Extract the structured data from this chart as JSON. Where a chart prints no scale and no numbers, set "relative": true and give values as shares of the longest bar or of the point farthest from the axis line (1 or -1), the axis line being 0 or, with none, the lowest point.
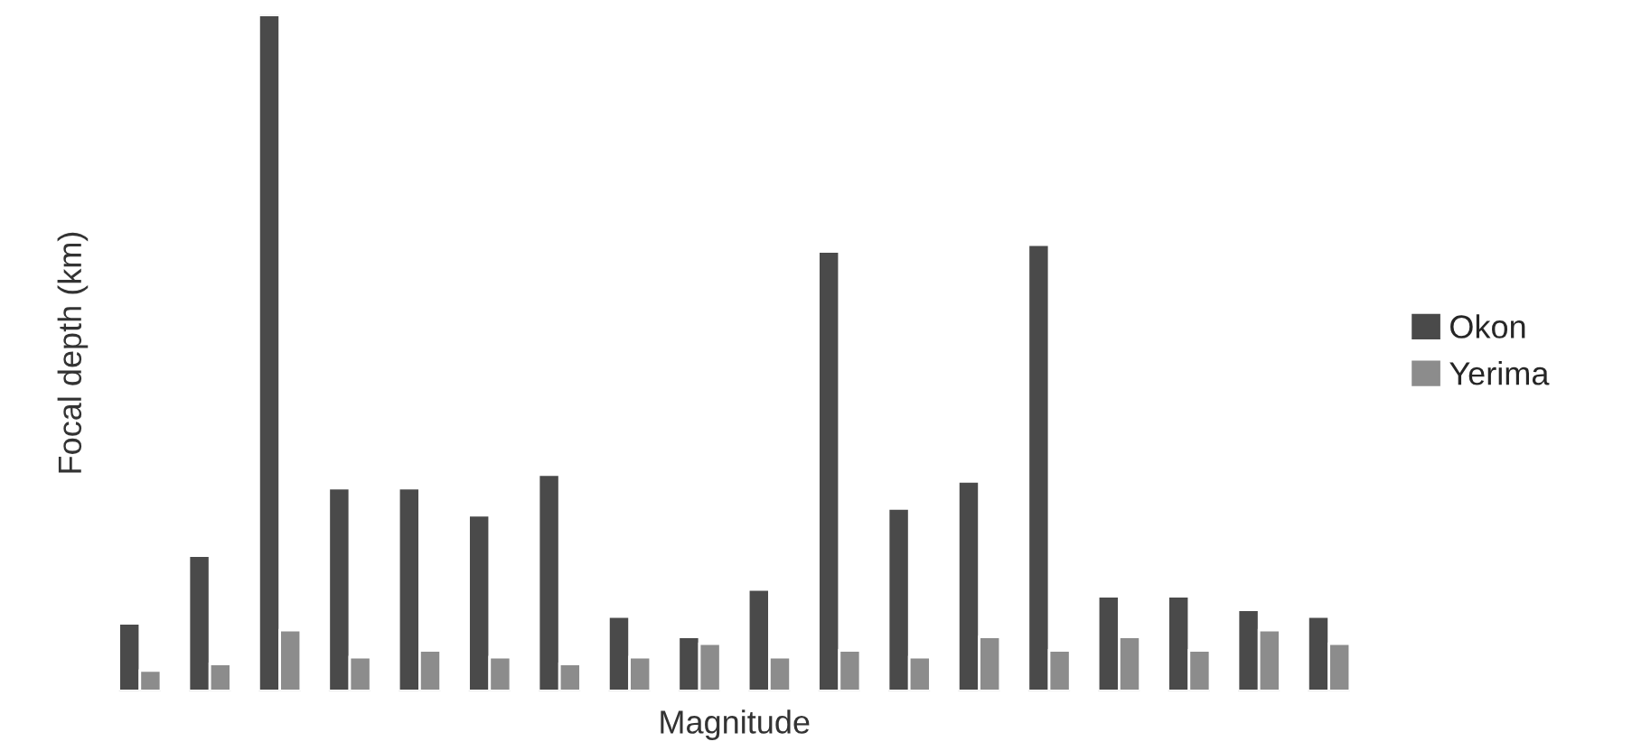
{
  "chart_data": {
    "type": "bar",
    "relative": true,
    "xlabel": "Magnitude",
    "ylabel": "Focal depth (km)",
    "categories": [
      null,
      null,
      null,
      null,
      null,
      null,
      null,
      null,
      null,
      null,
      null,
      null,
      null,
      null,
      null,
      null,
      null,
      null
    ],
    "series": [
      {
        "name": "Okon",
        "color": "#4a4a4a",
        "values": [
          0.1,
          0.2,
          1.0,
          0.3,
          0.3,
          0.26,
          0.32,
          0.11,
          0.08,
          0.15,
          0.65,
          0.27,
          0.31,
          0.66,
          0.14,
          0.14,
          0.12,
          0.11
        ]
      },
      {
        "name": "Yerima",
        "color": "#8c8c8c",
        "values": [
          0.03,
          0.04,
          0.09,
          0.05,
          0.06,
          0.05,
          0.04,
          0.05,
          0.07,
          0.05,
          0.06,
          0.05,
          0.08,
          0.06,
          0.08,
          0.06,
          0.09,
          0.07
        ]
      }
    ],
    "legend": "right",
    "grid": false
  }
}
